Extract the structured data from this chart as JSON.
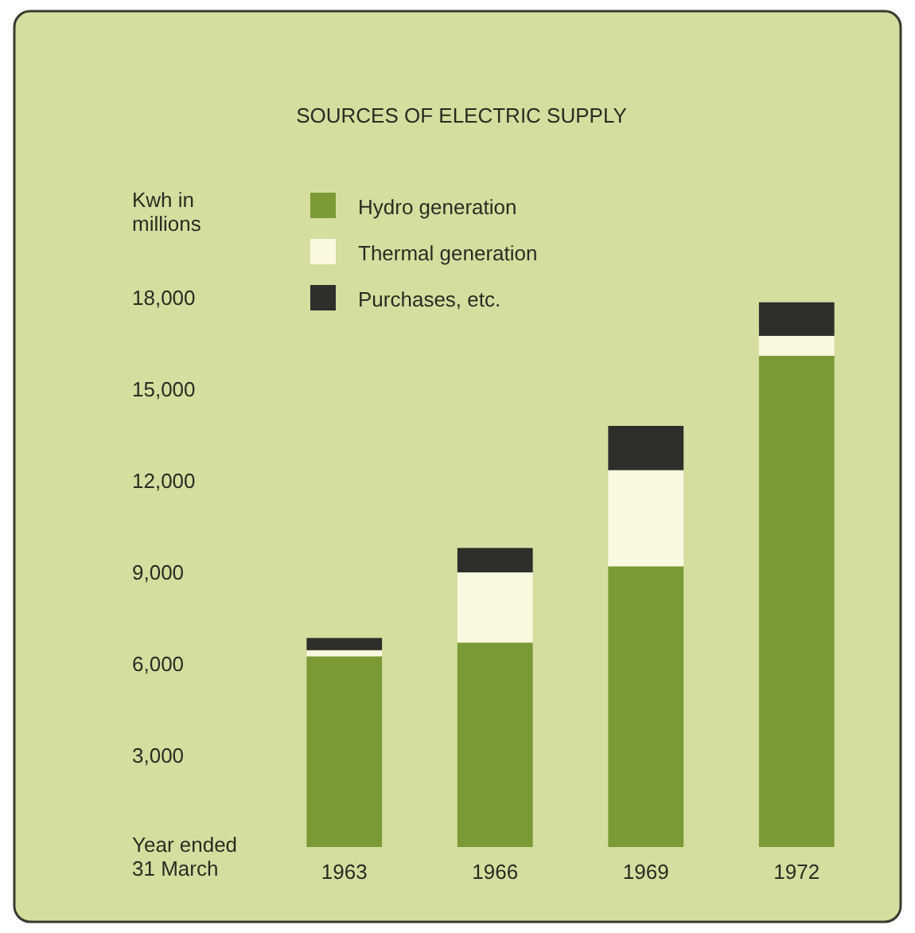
{
  "chart_data": {
    "type": "bar",
    "title": "SOURCES OF ELECTRIC SUPPLY",
    "ylabel": "Kwh in\nmillions",
    "xlabel": "Year ended\n31 March",
    "categories": [
      "1963",
      "1966",
      "1969",
      "1972"
    ],
    "stacked": true,
    "legend": "top left",
    "grid": false,
    "series": [
      {
        "name": "Hydro generation",
        "color": "#7a9a35",
        "values": [
          6250,
          6700,
          9200,
          16100
        ]
      },
      {
        "name": "Thermal generation",
        "color": "#fbf8e0",
        "values": [
          200,
          2300,
          3150,
          650
        ]
      },
      {
        "name": "Purchases, etc.",
        "color": "#2e2e2a",
        "values": [
          400,
          800,
          1450,
          1100
        ]
      }
    ],
    "ylim": [
      0,
      18000
    ],
    "yticks": [
      {
        "value": 3000,
        "label": "3,000"
      },
      {
        "value": 6000,
        "label": "6,000"
      },
      {
        "value": 9000,
        "label": "9,000"
      },
      {
        "value": 12000,
        "label": "12,000"
      },
      {
        "value": 15000,
        "label": "15,000"
      },
      {
        "value": 18000,
        "label": "18,000"
      }
    ]
  }
}
